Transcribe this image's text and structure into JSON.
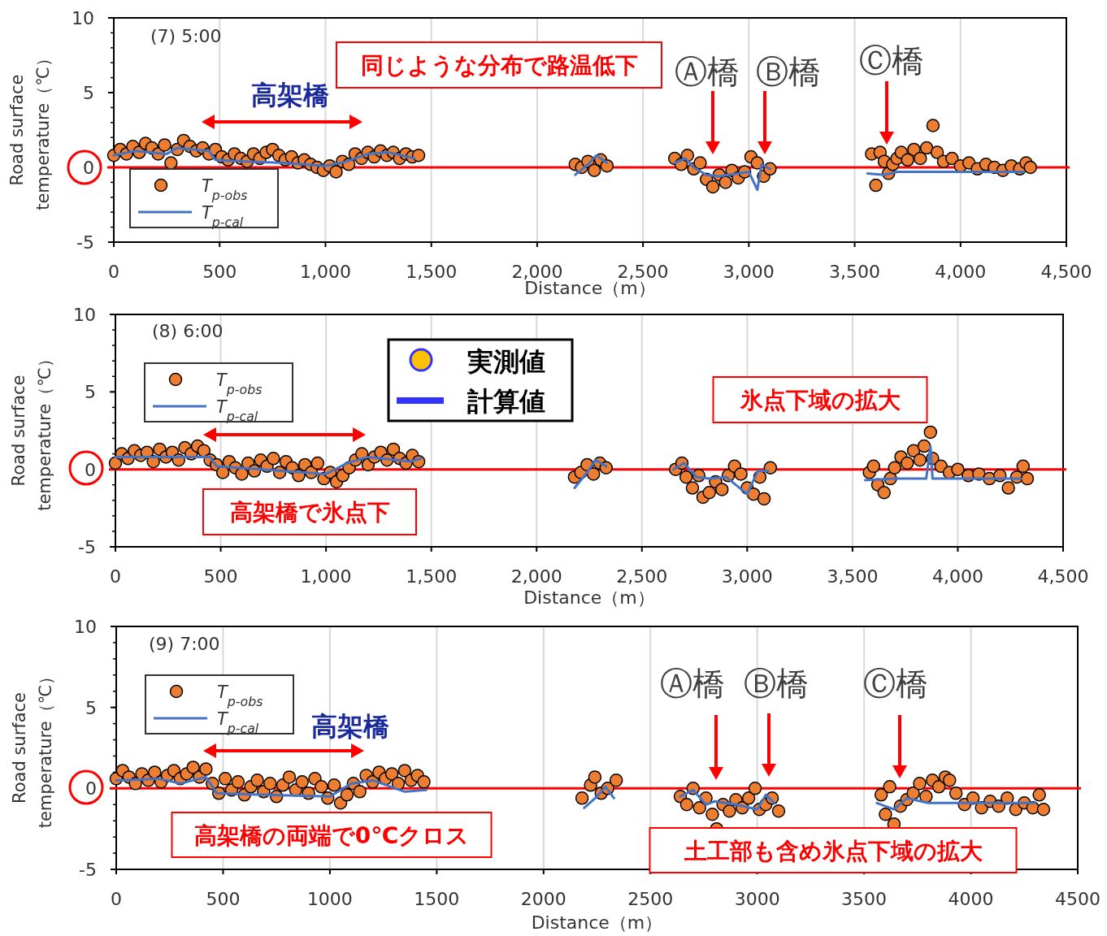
{
  "chart_data": [
    {
      "type": "scatter",
      "xlabel": "Distance（m）",
      "ylabel": "Road surface temperature（℃）",
      "xlim": [
        0,
        4500
      ],
      "ylim": [
        -5,
        10
      ],
      "xticks": [
        0,
        500,
        {
          "value": 1000,
          "label": "1,000"
        },
        {
          "value": 1500,
          "label": "1,500"
        },
        {
          "value": 2000,
          "label": "2,000"
        },
        {
          "value": 2500,
          "label": "2,500"
        },
        {
          "value": 3000,
          "label": "3,000"
        },
        {
          "value": 3500,
          "label": "3,500"
        },
        {
          "value": 4000,
          "label": "4,000"
        },
        {
          "value": 4500,
          "label": "4,500"
        }
      ],
      "yticks": [
        -5,
        0,
        5,
        10
      ],
      "grid": "x",
      "legend": "bottom left",
      "marker": "circle",
      "ref_lines": [
        {
          "axis": "y",
          "value": 0,
          "color": "#ff0000"
        }
      ],
      "annotations": [
        "(7) 5:00",
        "高架橋",
        "同じような分布で路温低下",
        "Ⓐ橋",
        "Ⓑ橋",
        "Ⓒ橋"
      ],
      "series": [
        {
          "name": "T$_{p-obs}$",
          "type": "scatter",
          "color": "#ed7d31",
          "x": [
            0,
            30,
            60,
            90,
            120,
            150,
            180,
            210,
            240,
            270,
            300,
            330,
            360,
            390,
            420,
            450,
            480,
            510,
            540,
            570,
            600,
            630,
            660,
            690,
            720,
            750,
            780,
            810,
            840,
            870,
            900,
            930,
            960,
            990,
            1020,
            1050,
            1080,
            1110,
            1140,
            1170,
            1200,
            1230,
            1260,
            1290,
            1320,
            1350,
            1380,
            1410,
            1440,
            2180,
            2210,
            2240,
            2270,
            2300,
            2330,
            2650,
            2680,
            2710,
            2740,
            2770,
            2800,
            2830,
            2860,
            2890,
            2920,
            2950,
            2980,
            3010,
            3040,
            3070,
            3100,
            3580,
            3600,
            3620,
            3640,
            3660,
            3680,
            3700,
            3720,
            3750,
            3780,
            3810,
            3840,
            3870,
            3890,
            3920,
            3960,
            4000,
            4040,
            4080,
            4120,
            4160,
            4200,
            4240,
            4280,
            4310,
            4330
          ],
          "values": [
            0.8,
            1.2,
            0.9,
            1.4,
            1.0,
            1.6,
            1.3,
            0.9,
            1.5,
            0.3,
            1.2,
            1.8,
            1.4,
            1.1,
            1.3,
            0.9,
            1.2,
            0.7,
            0.5,
            0.9,
            0.6,
            0.4,
            0.9,
            0.6,
            1.0,
            1.2,
            0.8,
            0.5,
            0.7,
            0.3,
            0.5,
            0.2,
            0.0,
            -0.2,
            0.1,
            -0.3,
            0.4,
            0.2,
            0.9,
            0.6,
            1.0,
            0.7,
            1.1,
            0.8,
            1.0,
            0.6,
            0.9,
            0.7,
            0.8,
            0.2,
            0.0,
            0.4,
            -0.2,
            0.5,
            0.1,
            0.6,
            0.2,
            0.8,
            -0.1,
            0.3,
            -0.8,
            -1.3,
            -0.5,
            -1.0,
            -0.2,
            -0.7,
            -0.3,
            0.7,
            0.3,
            -0.6,
            -0.1,
            0.9,
            -1.2,
            1.0,
            0.4,
            -0.4,
            0.2,
            0.6,
            1.0,
            0.5,
            1.2,
            0.6,
            1.3,
            2.8,
            1.0,
            0.4,
            0.6,
            0.1,
            0.3,
            -0.1,
            0.2,
            0.0,
            -0.2,
            0.1,
            -0.1,
            0.3,
            0.0
          ]
        },
        {
          "name": "T$_{p-cal}$",
          "type": "line",
          "marker": "none",
          "color": "#4472c4",
          "x": [
            0,
            100,
            250,
            300,
            450,
            480,
            600,
            800,
            1000,
            1100,
            1200,
            1300,
            1420,
            1800,
            2180,
            2240,
            2280,
            2330,
            2500,
            2650,
            2700,
            2740,
            2800,
            2860,
            2950,
            3000,
            3040,
            3060,
            3100,
            3400,
            3560,
            3640,
            3700,
            3800,
            4000,
            4300
          ],
          "values": [
            0.8,
            1.1,
            0.9,
            1.3,
            1.1,
            0.5,
            0.4,
            0.3,
            0.1,
            0.4,
            0.9,
            1.0,
            0.6,
            null,
            -0.5,
            0.2,
            0.8,
            0.3,
            null,
            0.3,
            0.6,
            0.0,
            -0.5,
            -0.6,
            -0.4,
            -0.3,
            -1.5,
            0.2,
            -0.1,
            null,
            -0.4,
            -0.5,
            -0.3,
            -0.3,
            -0.3,
            -0.3
          ]
        }
      ]
    },
    {
      "type": "scatter",
      "xlabel": "Distance（m）",
      "ylabel": "Road surface temperature（℃）",
      "xlim": [
        0,
        4500
      ],
      "ylim": [
        -5,
        10
      ],
      "xticks": [
        0,
        500,
        {
          "value": 1000,
          "label": "1,000"
        },
        {
          "value": 1500,
          "label": "1,500"
        },
        {
          "value": 2000,
          "label": "2,000"
        },
        {
          "value": 2500,
          "label": "2,500"
        },
        {
          "value": 3000,
          "label": "3,000"
        },
        {
          "value": 3500,
          "label": "3,500"
        },
        {
          "value": 4000,
          "label": "4,000"
        },
        {
          "value": 4500,
          "label": "4,500"
        }
      ],
      "yticks": [
        -5,
        0,
        5,
        10
      ],
      "grid": "x",
      "legend": "top left",
      "marker": "circle",
      "ref_lines": [
        {
          "axis": "y",
          "value": 0,
          "color": "#ff0000"
        }
      ],
      "annotations": [
        "(8) 6:00",
        "実測値",
        "計算値",
        "氷点下域の拡大",
        "高架橋で氷点下"
      ],
      "series": [
        {
          "name": "T$_{p-obs}$",
          "type": "scatter",
          "color": "#ed7d31",
          "x": [
            0,
            30,
            60,
            90,
            120,
            150,
            180,
            210,
            240,
            270,
            300,
            330,
            360,
            390,
            420,
            450,
            480,
            510,
            540,
            570,
            600,
            630,
            660,
            690,
            720,
            750,
            780,
            810,
            840,
            870,
            900,
            930,
            960,
            990,
            1020,
            1050,
            1080,
            1110,
            1140,
            1170,
            1200,
            1230,
            1260,
            1290,
            1320,
            1350,
            1380,
            1410,
            1440,
            2180,
            2210,
            2240,
            2270,
            2300,
            2330,
            2660,
            2690,
            2710,
            2740,
            2770,
            2790,
            2820,
            2850,
            2880,
            2910,
            2940,
            2970,
            3000,
            3030,
            3060,
            3080,
            3110,
            3580,
            3600,
            3620,
            3650,
            3680,
            3700,
            3730,
            3760,
            3790,
            3820,
            3840,
            3870,
            3880,
            3920,
            3960,
            4000,
            4050,
            4100,
            4150,
            4200,
            4240,
            4280,
            4310,
            4330
          ],
          "values": [
            0.4,
            1.0,
            0.7,
            1.2,
            0.9,
            1.1,
            0.5,
            1.3,
            0.8,
            1.1,
            0.6,
            1.4,
            1.0,
            1.5,
            1.2,
            0.6,
            0.3,
            -0.2,
            0.5,
            0.1,
            -0.3,
            0.4,
            -0.1,
            0.6,
            0.2,
            0.7,
            -0.2,
            0.5,
            0.1,
            -0.4,
            0.3,
            -0.2,
            0.4,
            -0.6,
            -0.2,
            -0.8,
            -0.4,
            0.1,
            0.6,
            1.0,
            0.3,
            0.8,
            1.1,
            0.6,
            1.3,
            0.7,
            0.4,
            0.9,
            0.5,
            -0.5,
            -0.2,
            0.3,
            -0.3,
            0.4,
            0.1,
            0.0,
            0.4,
            -0.5,
            -1.2,
            -0.4,
            -1.8,
            -1.5,
            -0.8,
            -1.3,
            -0.4,
            0.2,
            -0.3,
            -1.2,
            -1.6,
            -0.5,
            -1.9,
            0.1,
            -0.2,
            0.2,
            -1.0,
            -1.5,
            -0.6,
            0.1,
            0.8,
            0.4,
            1.2,
            0.6,
            1.5,
            2.4,
            0.7,
            0.2,
            -0.2,
            0.0,
            -0.4,
            -0.3,
            -0.6,
            -0.4,
            -1.2,
            -0.5,
            0.2,
            -0.6
          ]
        },
        {
          "name": "T$_{p-cal}$",
          "type": "line",
          "marker": "none",
          "color": "#4472c4",
          "x": [
            0,
            200,
            450,
            480,
            700,
            1000,
            1100,
            1200,
            1400,
            1450,
            1800,
            2180,
            2240,
            2280,
            2330,
            2500,
            2650,
            2700,
            2760,
            2820,
            2900,
            3000,
            3050,
            3100,
            3400,
            3560,
            3700,
            3850,
            3870,
            3880,
            4300
          ],
          "values": [
            0.8,
            0.8,
            0.8,
            0.2,
            0.0,
            -0.3,
            0.4,
            0.8,
            0.5,
            0.7,
            null,
            -1.2,
            -0.2,
            0.6,
            0.2,
            null,
            0.0,
            0.4,
            -0.5,
            -0.6,
            -0.5,
            -1.6,
            -0.1,
            -0.1,
            null,
            -0.7,
            -0.6,
            -0.6,
            1.5,
            -0.6,
            -0.6
          ]
        }
      ]
    },
    {
      "type": "scatter",
      "xlabel": "Distance（m）",
      "ylabel": "Road surface temperature（℃）",
      "xlim": [
        0,
        4500
      ],
      "ylim": [
        -5,
        10
      ],
      "xticks": [
        0,
        500,
        1000,
        1500,
        2000,
        2500,
        3000,
        3500,
        4000,
        4500
      ],
      "yticks": [
        -5,
        0,
        5,
        10
      ],
      "grid": "x",
      "legend": "top left",
      "marker": "circle",
      "ref_lines": [
        {
          "axis": "y",
          "value": 0,
          "color": "#ff0000"
        }
      ],
      "annotations": [
        "(9) 7:00",
        "高架橋",
        "Ⓐ橋",
        "Ⓑ橋",
        "Ⓒ橋",
        "高架橋の両端で0℃クロス",
        "土工部も含め氷点下域の拡大"
      ],
      "series": [
        {
          "name": "T$_{p-obs}$",
          "type": "scatter",
          "color": "#ed7d31",
          "x": [
            0,
            30,
            60,
            90,
            120,
            150,
            180,
            210,
            240,
            270,
            300,
            330,
            360,
            390,
            420,
            450,
            480,
            510,
            540,
            570,
            600,
            630,
            660,
            690,
            720,
            750,
            780,
            810,
            840,
            870,
            900,
            930,
            960,
            990,
            1020,
            1050,
            1080,
            1110,
            1140,
            1170,
            1200,
            1230,
            1260,
            1290,
            1320,
            1350,
            1380,
            1410,
            1440,
            2180,
            2220,
            2240,
            2270,
            2300,
            2340,
            2640,
            2670,
            2700,
            2730,
            2760,
            2790,
            2810,
            2840,
            2870,
            2900,
            2930,
            2960,
            2990,
            3010,
            3040,
            3070,
            3100,
            3580,
            3600,
            3620,
            3640,
            3670,
            3700,
            3730,
            3760,
            3790,
            3820,
            3850,
            3880,
            3900,
            3930,
            3970,
            4010,
            4050,
            4090,
            4130,
            4170,
            4210,
            4250,
            4290,
            4320,
            4340
          ],
          "values": [
            0.6,
            1.1,
            0.7,
            0.3,
            0.9,
            0.5,
            1.0,
            0.4,
            0.8,
            1.1,
            0.6,
            0.9,
            1.3,
            0.7,
            1.2,
            0.3,
            -0.3,
            0.6,
            -0.1,
            0.4,
            -0.4,
            0.1,
            0.5,
            -0.2,
            0.3,
            -0.5,
            0.2,
            0.7,
            -0.1,
            0.4,
            -0.3,
            0.6,
            0.1,
            -0.6,
            0.2,
            -0.9,
            -0.4,
            0.3,
            -0.2,
            0.8,
            0.4,
            1.0,
            0.6,
            0.9,
            0.3,
            1.1,
            0.5,
            0.8,
            0.4,
            -0.6,
            0.2,
            0.7,
            -0.3,
            0.0,
            0.5,
            -0.5,
            -1.0,
            0.0,
            -1.2,
            -0.6,
            -1.6,
            -2.5,
            -1.0,
            -1.4,
            -0.7,
            -1.2,
            -0.6,
            0.0,
            -1.3,
            -1.0,
            -0.6,
            -1.4,
            -0.4,
            -1.6,
            0.1,
            -2.2,
            -1.1,
            -0.7,
            -0.3,
            0.3,
            -0.5,
            0.5,
            0.1,
            0.7,
            0.5,
            -0.3,
            -1.0,
            -0.6,
            -1.2,
            -0.8,
            -1.1,
            -0.6,
            -1.3,
            -0.9,
            -1.2,
            -0.4,
            -1.3
          ]
        },
        {
          "name": "T$_{p-cal}$",
          "type": "line",
          "marker": "none",
          "color": "#4472c4",
          "x": [
            0,
            200,
            300,
            420,
            470,
            700,
            1000,
            1100,
            1200,
            1350,
            1450,
            1800,
            2190,
            2250,
            2290,
            2330,
            2500,
            2640,
            2700,
            2760,
            2800,
            2900,
            3000,
            3040,
            3080,
            3400,
            3560,
            3640,
            3700,
            3800,
            4300
          ],
          "values": [
            0.5,
            0.6,
            0.3,
            0.7,
            -0.3,
            -0.4,
            -0.5,
            0.3,
            0.5,
            -0.2,
            -0.1,
            null,
            -1.2,
            -0.5,
            0.1,
            -0.6,
            null,
            -0.5,
            -0.1,
            -1.0,
            -0.8,
            -1.0,
            -1.3,
            -0.4,
            -0.9,
            null,
            -0.9,
            -1.3,
            -0.6,
            -0.9,
            -0.9
          ]
        }
      ]
    }
  ]
}
